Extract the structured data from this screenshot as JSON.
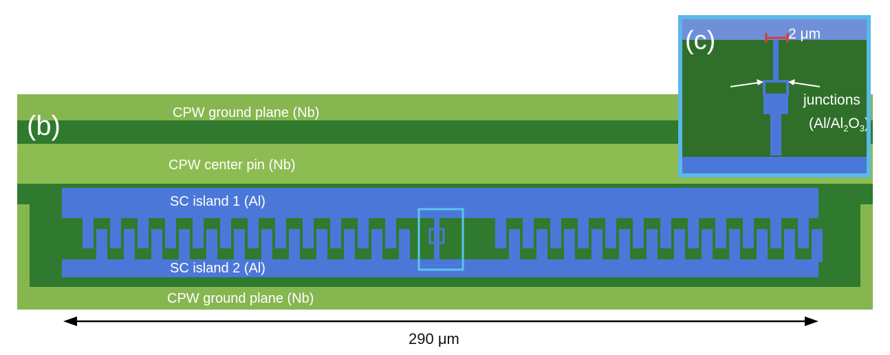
{
  "panel_b": {
    "letter": "(b)",
    "labels": {
      "ground_top": "CPW ground plane (Nb)",
      "center_pin": "CPW center pin (Nb)",
      "island1": "SC island 1 (Al)",
      "island2": "SC island 2 (Al)",
      "ground_bottom": "CPW ground plane (Nb)"
    },
    "scale_label": "290 μm"
  },
  "panel_c": {
    "letter": "(c)",
    "scale_label": "2 μm",
    "junctions_label": "junctions",
    "junctions_material_prefix": "(Al/Al",
    "junctions_sub1": "2",
    "junctions_mid": "O",
    "junctions_sub2": "3",
    "junctions_suffix": ")"
  },
  "colors": {
    "niobium": "#7fb04a",
    "gap": "#2f7a2e",
    "aluminum": "#4b78d8",
    "highlight": "#5bc4f0"
  }
}
